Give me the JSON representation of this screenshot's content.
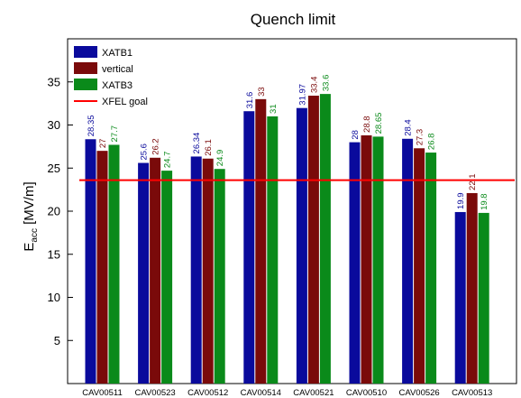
{
  "chart_data": {
    "type": "bar",
    "title": "Quench limit",
    "ylabel": "E",
    "ylabel_sub": "acc",
    "ylabel_unit": " [MV/m]",
    "xlabel": "",
    "ylim": [
      0,
      40
    ],
    "yticks": [
      5,
      10,
      15,
      20,
      25,
      30,
      35
    ],
    "grid": false,
    "legend_position": "top-left",
    "categories": [
      "CAV00511",
      "CAV00523",
      "CAV00512",
      "CAV00514",
      "CAV00521",
      "CAV00510",
      "CAV00526",
      "CAV00513"
    ],
    "series": [
      {
        "name": "XATB1",
        "color": "#0a0a9c",
        "values": [
          28.35,
          25.6,
          26.34,
          31.6,
          31.97,
          28,
          28.4,
          19.9
        ],
        "labels": [
          "28.35",
          "25.6",
          "26.34",
          "31.6",
          "31.97",
          "28",
          "28.4",
          "19.9"
        ]
      },
      {
        "name": "vertical",
        "color": "#7a0a0a",
        "values": [
          27,
          26.2,
          26.1,
          33,
          33.4,
          28.8,
          27.3,
          22.1
        ],
        "labels": [
          "27",
          "26.2",
          "26.1",
          "33",
          "33.4",
          "28.8",
          "27.3",
          "22.1"
        ]
      },
      {
        "name": "XATB3",
        "color": "#0a8a1a",
        "values": [
          27.7,
          24.7,
          24.9,
          31,
          33.6,
          28.65,
          26.8,
          19.8
        ],
        "labels": [
          "27.7",
          "24.7",
          "24.9",
          "31",
          "33.6",
          "28.65",
          "26.8",
          "19.8"
        ]
      }
    ],
    "reference_line": {
      "name": "XFEL goal",
      "value": 23.6,
      "color": "#ff0000"
    }
  }
}
